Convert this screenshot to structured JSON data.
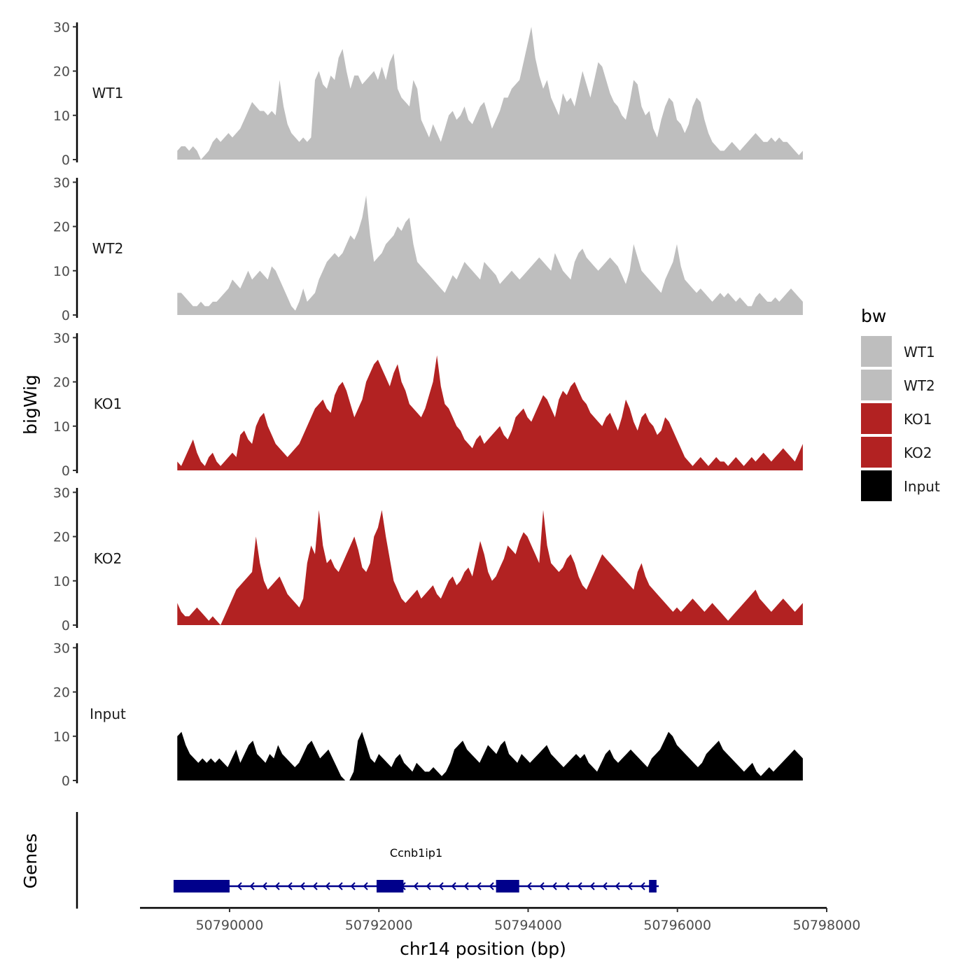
{
  "chart_data": {
    "type": "area",
    "xlabel": "chr14 position (bp)",
    "ylabel": "bigWig",
    "genes_label": "Genes",
    "xlim": [
      50788800,
      50798000
    ],
    "x_ticks": [
      50790000,
      50792000,
      50794000,
      50796000,
      50798000
    ],
    "x_tick_labels": [
      "50790000",
      "50792000",
      "50794000",
      "50796000",
      "50798000"
    ],
    "ylim": [
      0,
      31
    ],
    "y_ticks": [
      0,
      10,
      20,
      30
    ],
    "y_tick_labels": [
      "0",
      "10",
      "20",
      "30"
    ],
    "legend_title": "bw",
    "colors": {
      "WT1": "#bebebe",
      "WT2": "#bebebe",
      "KO1": "#b22222",
      "KO2": "#b22222",
      "Input": "#000000"
    },
    "series": [
      {
        "name": "WT1",
        "x_start": 50789300,
        "x_end": 50797680,
        "values": [
          2,
          3,
          3,
          2,
          3,
          2,
          0,
          1,
          2,
          4,
          5,
          4,
          5,
          6,
          5,
          6,
          7,
          9,
          11,
          13,
          12,
          11,
          11,
          10,
          11,
          10,
          18,
          12,
          8,
          6,
          5,
          4,
          5,
          4,
          5,
          18,
          20,
          17,
          16,
          19,
          18,
          23,
          25,
          20,
          16,
          19,
          19,
          17,
          18,
          19,
          20,
          18,
          21,
          18,
          22,
          24,
          16,
          14,
          13,
          12,
          18,
          16,
          9,
          7,
          5,
          8,
          6,
          4,
          7,
          10,
          11,
          9,
          10,
          12,
          9,
          8,
          10,
          12,
          13,
          10,
          7,
          9,
          11,
          14,
          14,
          16,
          17,
          18,
          22,
          26,
          30,
          23,
          19,
          16,
          18,
          14,
          12,
          10,
          15,
          13,
          14,
          12,
          16,
          20,
          17,
          14,
          18,
          22,
          21,
          18,
          15,
          13,
          12,
          10,
          9,
          13,
          18,
          17,
          12,
          10,
          11,
          7,
          5,
          9,
          12,
          14,
          13,
          9,
          8,
          6,
          8,
          12,
          14,
          13,
          9,
          6,
          4,
          3,
          2,
          2,
          3,
          4,
          3,
          2,
          3,
          4,
          5,
          6,
          5,
          4,
          4,
          5,
          4,
          5,
          4,
          4,
          3,
          2,
          1,
          2
        ]
      },
      {
        "name": "WT2",
        "x_start": 50789300,
        "x_end": 50797680,
        "values": [
          5,
          5,
          4,
          3,
          2,
          2,
          3,
          2,
          2,
          3,
          3,
          4,
          5,
          6,
          8,
          7,
          6,
          8,
          10,
          8,
          9,
          10,
          9,
          8,
          11,
          10,
          8,
          6,
          4,
          2,
          1,
          3,
          6,
          3,
          4,
          5,
          8,
          10,
          12,
          13,
          14,
          13,
          14,
          16,
          18,
          17,
          19,
          22,
          27,
          18,
          12,
          13,
          14,
          16,
          17,
          18,
          20,
          19,
          21,
          22,
          16,
          12,
          11,
          10,
          9,
          8,
          7,
          6,
          5,
          7,
          9,
          8,
          10,
          12,
          11,
          10,
          9,
          8,
          12,
          11,
          10,
          9,
          7,
          8,
          9,
          10,
          9,
          8,
          9,
          10,
          11,
          12,
          13,
          12,
          11,
          10,
          14,
          12,
          10,
          9,
          8,
          12,
          14,
          15,
          13,
          12,
          11,
          10,
          11,
          12,
          13,
          12,
          11,
          9,
          7,
          10,
          16,
          13,
          10,
          9,
          8,
          7,
          6,
          5,
          8,
          10,
          12,
          16,
          11,
          8,
          7,
          6,
          5,
          6,
          5,
          4,
          3,
          4,
          5,
          4,
          5,
          4,
          3,
          4,
          3,
          2,
          2,
          4,
          5,
          4,
          3,
          3,
          4,
          3,
          4,
          5,
          6,
          5,
          4,
          3
        ]
      },
      {
        "name": "KO1",
        "x_start": 50789300,
        "x_end": 50797680,
        "values": [
          2,
          1,
          3,
          5,
          7,
          4,
          2,
          1,
          3,
          4,
          2,
          1,
          2,
          3,
          4,
          3,
          8,
          9,
          7,
          6,
          10,
          12,
          13,
          10,
          8,
          6,
          5,
          4,
          3,
          4,
          5,
          6,
          8,
          10,
          12,
          14,
          15,
          16,
          14,
          13,
          17,
          19,
          20,
          18,
          15,
          12,
          14,
          16,
          20,
          22,
          24,
          25,
          23,
          21,
          19,
          22,
          24,
          20,
          18,
          15,
          14,
          13,
          12,
          14,
          17,
          20,
          26,
          19,
          15,
          14,
          12,
          10,
          9,
          7,
          6,
          5,
          7,
          8,
          6,
          7,
          8,
          9,
          10,
          8,
          7,
          9,
          12,
          13,
          14,
          12,
          11,
          13,
          15,
          17,
          16,
          14,
          12,
          16,
          18,
          17,
          19,
          20,
          18,
          16,
          15,
          13,
          12,
          11,
          10,
          12,
          13,
          11,
          9,
          12,
          16,
          14,
          11,
          9,
          12,
          13,
          11,
          10,
          8,
          9,
          12,
          11,
          9,
          7,
          5,
          3,
          2,
          1,
          2,
          3,
          2,
          1,
          2,
          3,
          2,
          2,
          1,
          2,
          3,
          2,
          1,
          2,
          3,
          2,
          3,
          4,
          3,
          2,
          3,
          4,
          5,
          4,
          3,
          2,
          4,
          6
        ]
      },
      {
        "name": "KO2",
        "x_start": 50789300,
        "x_end": 50797680,
        "values": [
          5,
          3,
          2,
          2,
          3,
          4,
          3,
          2,
          1,
          2,
          1,
          0,
          2,
          4,
          6,
          8,
          9,
          10,
          11,
          12,
          20,
          14,
          10,
          8,
          9,
          10,
          11,
          9,
          7,
          6,
          5,
          4,
          6,
          14,
          18,
          16,
          26,
          18,
          14,
          15,
          13,
          12,
          14,
          16,
          18,
          20,
          17,
          13,
          12,
          14,
          20,
          22,
          26,
          20,
          15,
          10,
          8,
          6,
          5,
          6,
          7,
          8,
          6,
          7,
          8,
          9,
          7,
          6,
          8,
          10,
          11,
          9,
          10,
          12,
          13,
          11,
          15,
          19,
          16,
          12,
          10,
          11,
          13,
          15,
          18,
          17,
          16,
          19,
          21,
          20,
          18,
          16,
          14,
          26,
          18,
          14,
          13,
          12,
          13,
          15,
          16,
          14,
          11,
          9,
          8,
          10,
          12,
          14,
          16,
          15,
          14,
          13,
          12,
          11,
          10,
          9,
          8,
          12,
          14,
          11,
          9,
          8,
          7,
          6,
          5,
          4,
          3,
          4,
          3,
          4,
          5,
          6,
          5,
          4,
          3,
          4,
          5,
          4,
          3,
          2,
          1,
          2,
          3,
          4,
          5,
          6,
          7,
          8,
          6,
          5,
          4,
          3,
          4,
          5,
          6,
          5,
          4,
          3,
          4,
          5
        ]
      },
      {
        "name": "Input",
        "x_start": 50789300,
        "x_end": 50797680,
        "values": [
          10,
          11,
          8,
          6,
          5,
          4,
          5,
          4,
          5,
          4,
          5,
          4,
          3,
          5,
          7,
          4,
          6,
          8,
          9,
          6,
          5,
          4,
          6,
          5,
          8,
          6,
          5,
          4,
          3,
          4,
          6,
          8,
          9,
          7,
          5,
          6,
          7,
          5,
          3,
          1,
          0,
          0,
          2,
          9,
          11,
          8,
          5,
          4,
          6,
          5,
          4,
          3,
          5,
          6,
          4,
          3,
          2,
          4,
          3,
          2,
          2,
          3,
          2,
          1,
          2,
          4,
          7,
          8,
          9,
          7,
          6,
          5,
          4,
          6,
          8,
          7,
          6,
          8,
          9,
          6,
          5,
          4,
          6,
          5,
          4,
          5,
          6,
          7,
          8,
          6,
          5,
          4,
          3,
          4,
          5,
          6,
          5,
          6,
          4,
          3,
          2,
          4,
          6,
          7,
          5,
          4,
          5,
          6,
          7,
          6,
          5,
          4,
          3,
          5,
          6,
          7,
          9,
          11,
          10,
          8,
          7,
          6,
          5,
          4,
          3,
          4,
          6,
          7,
          8,
          9,
          7,
          6,
          5,
          4,
          3,
          2,
          3,
          4,
          2,
          1,
          2,
          3,
          2,
          3,
          4,
          5,
          6,
          7,
          6,
          5
        ]
      }
    ],
    "gene": {
      "name": "Ccnb1ip1",
      "strand": "-",
      "start": 50789250,
      "end": 50795750,
      "exons": [
        [
          50789250,
          50790000
        ],
        [
          50791970,
          50792330
        ],
        [
          50793570,
          50793880
        ],
        [
          50795620,
          50795720
        ]
      ]
    }
  }
}
